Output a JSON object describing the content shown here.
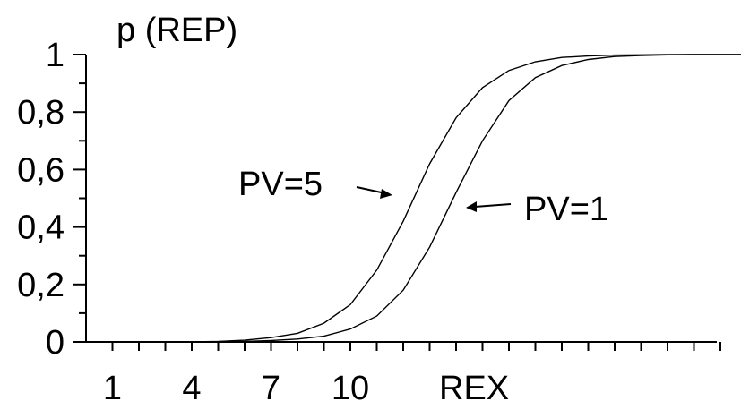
{
  "chart_data": {
    "type": "line",
    "title": "",
    "ylabel": "p (REP)",
    "xlabel": "REX",
    "x_tick_labels": [
      "1",
      "4",
      "7",
      "10"
    ],
    "x_tick_label_values": [
      1,
      4,
      7,
      10
    ],
    "y_tick_labels": [
      "0",
      "0,2",
      "0,4",
      "0,6",
      "0,8",
      "1"
    ],
    "y_tick_label_values": [
      0,
      0.2,
      0.4,
      0.6,
      0.8,
      1
    ],
    "xlim": [
      1,
      25
    ],
    "ylim": [
      0,
      1
    ],
    "grid": false,
    "x": [
      1,
      2,
      3,
      4,
      5,
      6,
      7,
      8,
      9,
      10,
      11,
      12,
      13,
      14,
      15,
      16,
      17,
      18,
      19,
      20,
      21,
      22,
      23,
      24,
      25
    ],
    "series": [
      {
        "name": "PV=5",
        "values": [
          0,
          0,
          0,
          0,
          0.002,
          0.006,
          0.015,
          0.03,
          0.065,
          0.13,
          0.25,
          0.42,
          0.62,
          0.78,
          0.885,
          0.945,
          0.975,
          0.99,
          0.995,
          0.998,
          0.999,
          1,
          1,
          1,
          1
        ]
      },
      {
        "name": "PV=1",
        "values": [
          0,
          0,
          0,
          0,
          0,
          0.002,
          0.005,
          0.01,
          0.02,
          0.045,
          0.09,
          0.18,
          0.33,
          0.52,
          0.7,
          0.84,
          0.92,
          0.962,
          0.983,
          0.993,
          0.997,
          0.999,
          1,
          1,
          1
        ]
      }
    ],
    "annotations": [
      {
        "text": "PV=5",
        "series": "PV=5"
      },
      {
        "text": "PV=1",
        "series": "PV=1"
      }
    ]
  }
}
